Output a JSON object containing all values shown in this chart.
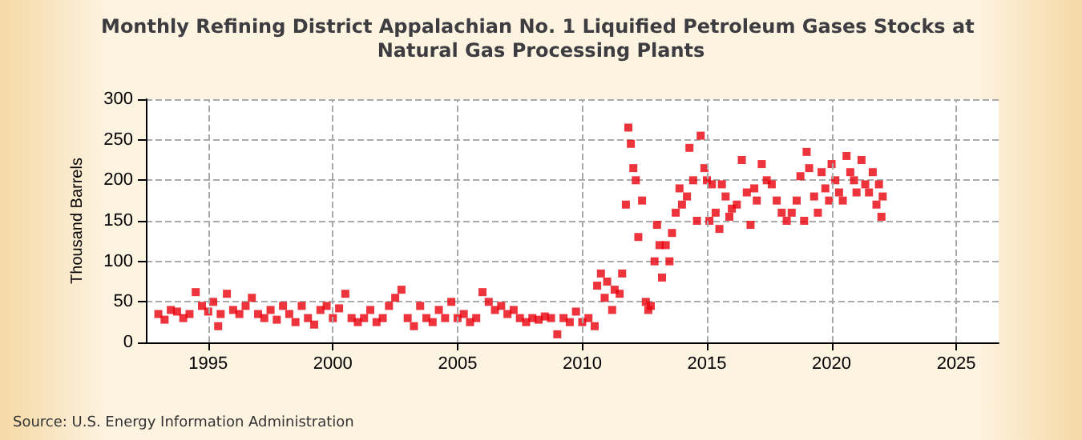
{
  "chart_data": {
    "type": "scatter",
    "title": "Monthly Refining District Appalachian No. 1 Liquified Petroleum Gases Stocks at Natural Gas Processing Plants",
    "ylabel": "Thousand Barrels",
    "annotations": [
      "Source: U.S. Energy Information Administration"
    ],
    "x": [
      1993.0,
      1993.25,
      1993.5,
      1993.75,
      1994.0,
      1994.25,
      1994.5,
      1994.75,
      1995.0,
      1995.2,
      1995.4,
      1995.5,
      1995.75,
      1996.0,
      1996.25,
      1996.5,
      1996.75,
      1997.0,
      1997.25,
      1997.5,
      1997.75,
      1998.0,
      1998.25,
      1998.5,
      1998.75,
      1999.0,
      1999.25,
      1999.5,
      1999.75,
      2000.0,
      2000.25,
      2000.5,
      2000.75,
      2001.0,
      2001.25,
      2001.5,
      2001.75,
      2002.0,
      2002.25,
      2002.5,
      2002.75,
      2003.0,
      2003.25,
      2003.5,
      2003.75,
      2004.0,
      2004.25,
      2004.5,
      2004.75,
      2005.0,
      2005.25,
      2005.5,
      2005.75,
      2006.0,
      2006.25,
      2006.5,
      2006.75,
      2007.0,
      2007.25,
      2007.5,
      2007.75,
      2008.0,
      2008.25,
      2008.5,
      2008.75,
      2009.0,
      2009.25,
      2009.5,
      2009.75,
      2010.0,
      2010.25,
      2010.5,
      2010.6,
      2010.75,
      2010.9,
      2011.0,
      2011.2,
      2011.3,
      2011.5,
      2011.6,
      2011.75,
      2011.85,
      2011.95,
      2012.05,
      2012.15,
      2012.25,
      2012.4,
      2012.55,
      2012.65,
      2012.75,
      2012.9,
      2013.0,
      2013.1,
      2013.2,
      2013.35,
      2013.5,
      2013.6,
      2013.75,
      2013.9,
      2014.0,
      2014.2,
      2014.3,
      2014.45,
      2014.6,
      2014.75,
      2014.9,
      2015.0,
      2015.1,
      2015.2,
      2015.35,
      2015.5,
      2015.6,
      2015.75,
      2015.9,
      2016.0,
      2016.2,
      2016.4,
      2016.6,
      2016.75,
      2016.9,
      2017.0,
      2017.2,
      2017.4,
      2017.6,
      2017.8,
      2018.0,
      2018.2,
      2018.4,
      2018.6,
      2018.75,
      2018.9,
      2019.0,
      2019.1,
      2019.3,
      2019.45,
      2019.6,
      2019.75,
      2019.9,
      2020.0,
      2020.15,
      2020.3,
      2020.45,
      2020.6,
      2020.75,
      2020.9,
      2021.0,
      2021.2,
      2021.35,
      2021.5,
      2021.65,
      2021.8,
      2021.9,
      2022.0,
      2022.05
    ],
    "series": [
      {
        "color": "#e8000b",
        "values": [
          35,
          28,
          40,
          38,
          30,
          35,
          62,
          45,
          38,
          50,
          20,
          35,
          60,
          40,
          35,
          45,
          55,
          35,
          30,
          40,
          28,
          45,
          35,
          25,
          45,
          30,
          22,
          40,
          45,
          30,
          42,
          60,
          30,
          25,
          30,
          40,
          25,
          30,
          45,
          55,
          65,
          30,
          20,
          45,
          30,
          25,
          40,
          30,
          50,
          30,
          35,
          25,
          30,
          62,
          50,
          40,
          45,
          35,
          40,
          30,
          25,
          30,
          28,
          32,
          30,
          10,
          30,
          25,
          38,
          25,
          30,
          20,
          70,
          85,
          55,
          75,
          40,
          65,
          60,
          85,
          170,
          265,
          245,
          215,
          200,
          130,
          175,
          50,
          40,
          45,
          100,
          145,
          120,
          80,
          120,
          100,
          135,
          160,
          190,
          170,
          180,
          240,
          200,
          150,
          255,
          215,
          200,
          150,
          195,
          160,
          140,
          195,
          180,
          155,
          165,
          170,
          225,
          185,
          145,
          190,
          175,
          220,
          200,
          195,
          175,
          160,
          150,
          160,
          175,
          205,
          150,
          235,
          215,
          180,
          160,
          210,
          190,
          175,
          220,
          200,
          185,
          175,
          230,
          210,
          200,
          185,
          225,
          195,
          185,
          210,
          170,
          195,
          155,
          180
        ]
      }
    ],
    "xlim": [
      1992.5,
      2026.7
    ],
    "xticks": [
      1995,
      2000,
      2005,
      2010,
      2015,
      2020,
      2025
    ],
    "ylim": [
      0,
      300
    ],
    "yticks": [
      0,
      50,
      100,
      150,
      200,
      250,
      300
    ],
    "grid": true,
    "marker": "square"
  }
}
